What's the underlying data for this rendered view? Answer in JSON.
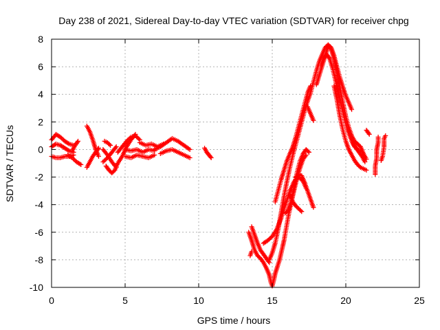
{
  "chart_data": {
    "type": "scatter",
    "title": "Day 238 of 2021, Sidereal Day-to-day VTEC variation (SDTVAR) for receiver chpg",
    "xlabel": "GPS time / hours",
    "ylabel": "SDTVAR / TECUs",
    "xlim": [
      0,
      25
    ],
    "ylim": [
      -10,
      8
    ],
    "xticks": [
      "0",
      "5",
      "10",
      "15",
      "20",
      "25"
    ],
    "yticks": [
      "-10",
      "-8",
      "-6",
      "-4",
      "-2",
      "0",
      "2",
      "4",
      "6",
      "8"
    ],
    "grid": true,
    "marker": "+",
    "color": "#ff0000",
    "series": [
      {
        "name": "SDTVAR",
        "segments": [
          [
            [
              0.0,
              0.7
            ],
            [
              0.3,
              1.1
            ],
            [
              0.6,
              0.9
            ],
            [
              0.9,
              0.6
            ],
            [
              1.2,
              0.4
            ],
            [
              1.5,
              0.3
            ]
          ],
          [
            [
              0.0,
              0.2
            ],
            [
              0.3,
              0.4
            ],
            [
              0.6,
              0.3
            ],
            [
              0.9,
              0.1
            ],
            [
              1.2,
              -0.1
            ],
            [
              1.5,
              -0.2
            ]
          ],
          [
            [
              0.0,
              -0.5
            ],
            [
              0.3,
              -0.6
            ],
            [
              0.6,
              -0.6
            ],
            [
              0.9,
              -0.5
            ],
            [
              1.2,
              -0.5
            ],
            [
              1.5,
              -0.4
            ]
          ],
          [
            [
              1.1,
              -0.4
            ],
            [
              1.4,
              -0.6
            ],
            [
              1.7,
              -0.9
            ],
            [
              2.0,
              -1.1
            ]
          ],
          [
            [
              1.4,
              -0.1
            ],
            [
              1.6,
              0.3
            ],
            [
              1.8,
              0.6
            ]
          ],
          [
            [
              2.4,
              1.7
            ],
            [
              2.6,
              1.3
            ],
            [
              2.8,
              0.7
            ],
            [
              3.0,
              0.0
            ],
            [
              3.2,
              -0.5
            ]
          ],
          [
            [
              2.4,
              -1.3
            ],
            [
              2.6,
              -0.9
            ],
            [
              2.8,
              -0.5
            ],
            [
              3.0,
              -0.2
            ],
            [
              3.2,
              0.1
            ]
          ],
          [
            [
              3.5,
              0.0
            ],
            [
              3.8,
              -0.4
            ],
            [
              4.1,
              -0.9
            ],
            [
              4.4,
              -1.3
            ]
          ],
          [
            [
              3.5,
              -0.9
            ],
            [
              3.8,
              -0.6
            ],
            [
              4.1,
              -0.2
            ],
            [
              4.4,
              0.2
            ]
          ],
          [
            [
              3.6,
              0.6
            ],
            [
              3.8,
              0.5
            ],
            [
              4.0,
              0.3
            ]
          ],
          [
            [
              3.7,
              -1.2
            ],
            [
              3.9,
              -1.5
            ],
            [
              4.1,
              -1.7
            ],
            [
              4.3,
              -1.5
            ],
            [
              4.5,
              -1.0
            ],
            [
              4.8,
              -0.5
            ],
            [
              5.1,
              0.2
            ],
            [
              5.4,
              0.7
            ],
            [
              5.7,
              1.1
            ]
          ],
          [
            [
              4.5,
              -0.2
            ],
            [
              4.8,
              0.2
            ],
            [
              5.1,
              0.6
            ],
            [
              5.4,
              0.9
            ],
            [
              5.7,
              1.0
            ],
            [
              6.0,
              0.7
            ]
          ],
          [
            [
              5.0,
              -0.5
            ],
            [
              5.4,
              -0.6
            ],
            [
              5.8,
              -0.4
            ],
            [
              6.2,
              -0.5
            ],
            [
              6.6,
              -0.6
            ],
            [
              7.0,
              -0.4
            ]
          ],
          [
            [
              5.0,
              0.0
            ],
            [
              5.4,
              -0.1
            ],
            [
              5.8,
              0.0
            ],
            [
              6.2,
              -0.2
            ],
            [
              6.6,
              0.0
            ],
            [
              7.0,
              -0.1
            ]
          ],
          [
            [
              6.0,
              0.5
            ],
            [
              6.4,
              0.3
            ],
            [
              6.8,
              0.4
            ],
            [
              7.2,
              0.2
            ],
            [
              7.6,
              0.4
            ]
          ],
          [
            [
              7.0,
              0.0
            ],
            [
              7.4,
              0.2
            ],
            [
              7.8,
              0.5
            ],
            [
              8.2,
              0.8
            ],
            [
              8.6,
              0.6
            ],
            [
              9.0,
              0.3
            ],
            [
              9.4,
              0.0
            ]
          ],
          [
            [
              7.4,
              -0.3
            ],
            [
              7.8,
              -0.1
            ],
            [
              8.2,
              0.0
            ],
            [
              8.6,
              -0.2
            ],
            [
              9.0,
              -0.4
            ],
            [
              9.4,
              -0.6
            ]
          ],
          [
            [
              10.4,
              0.1
            ],
            [
              10.55,
              -0.2
            ],
            [
              10.7,
              -0.4
            ],
            [
              10.85,
              -0.6
            ]
          ],
          [
            [
              13.5,
              -7.7
            ],
            [
              13.6,
              -7.4
            ]
          ],
          [
            [
              13.4,
              -6.0
            ],
            [
              13.6,
              -6.6
            ],
            [
              13.8,
              -7.3
            ],
            [
              14.0,
              -7.7
            ],
            [
              14.2,
              -7.9
            ],
            [
              14.4,
              -8.2
            ],
            [
              14.6,
              -8.6
            ],
            [
              14.8,
              -9.1
            ],
            [
              14.9,
              -9.6
            ],
            [
              15.0,
              -9.9
            ],
            [
              15.1,
              -9.5
            ],
            [
              15.2,
              -9.0
            ],
            [
              15.35,
              -8.5
            ],
            [
              15.5,
              -8.0
            ],
            [
              15.65,
              -7.3
            ],
            [
              15.8,
              -6.6
            ],
            [
              15.95,
              -5.7
            ],
            [
              16.1,
              -4.8
            ],
            [
              16.3,
              -3.8
            ],
            [
              16.5,
              -2.9
            ],
            [
              16.7,
              -2.0
            ],
            [
              16.9,
              -1.3
            ],
            [
              17.1,
              -0.7
            ],
            [
              17.3,
              -0.4
            ]
          ],
          [
            [
              13.6,
              -5.6
            ],
            [
              13.8,
              -6.2
            ],
            [
              14.0,
              -6.8
            ],
            [
              14.2,
              -7.3
            ],
            [
              14.4,
              -7.6
            ],
            [
              14.6,
              -7.9
            ],
            [
              14.8,
              -8.2
            ]
          ],
          [
            [
              14.4,
              -6.8
            ],
            [
              14.7,
              -6.6
            ],
            [
              15.0,
              -6.3
            ],
            [
              15.3,
              -5.8
            ],
            [
              15.6,
              -5.0
            ],
            [
              15.9,
              -4.0
            ],
            [
              16.2,
              -3.0
            ],
            [
              16.5,
              -2.3
            ],
            [
              16.8,
              -2.0
            ],
            [
              17.1,
              -2.3
            ],
            [
              17.3,
              -2.8
            ]
          ],
          [
            [
              14.8,
              -8.0
            ],
            [
              15.0,
              -7.5
            ],
            [
              15.2,
              -6.8
            ],
            [
              15.4,
              -5.8
            ],
            [
              15.6,
              -4.6
            ],
            [
              15.8,
              -3.4
            ],
            [
              16.0,
              -2.3
            ],
            [
              16.2,
              -1.3
            ],
            [
              16.4,
              -0.4
            ],
            [
              16.6,
              0.4
            ],
            [
              16.8,
              1.2
            ],
            [
              17.0,
              2.0
            ],
            [
              17.2,
              2.8
            ],
            [
              17.4,
              3.5
            ],
            [
              17.6,
              4.1
            ],
            [
              17.8,
              4.9
            ],
            [
              18.0,
              5.7
            ],
            [
              18.2,
              6.4
            ],
            [
              18.4,
              6.9
            ],
            [
              18.6,
              7.4
            ],
            [
              18.8,
              7.6
            ],
            [
              19.0,
              7.4
            ],
            [
              19.2,
              6.8
            ],
            [
              19.4,
              6.0
            ],
            [
              19.6,
              5.2
            ],
            [
              19.8,
              4.5
            ],
            [
              20.0,
              3.9
            ],
            [
              20.2,
              3.4
            ],
            [
              20.4,
              2.9
            ]
          ],
          [
            [
              15.2,
              -3.8
            ],
            [
              15.4,
              -3.0
            ],
            [
              15.6,
              -2.2
            ],
            [
              15.8,
              -1.5
            ],
            [
              16.0,
              -0.8
            ],
            [
              16.2,
              -0.3
            ],
            [
              16.4,
              0.2
            ],
            [
              16.6,
              0.9
            ],
            [
              16.8,
              1.7
            ],
            [
              17.0,
              2.5
            ],
            [
              17.2,
              3.3
            ],
            [
              17.4,
              4.1
            ],
            [
              17.6,
              4.6
            ]
          ],
          [
            [
              15.9,
              -4.6
            ],
            [
              16.1,
              -4.4
            ],
            [
              16.3,
              -3.7
            ],
            [
              16.5,
              -2.6
            ],
            [
              16.7,
              -1.6
            ],
            [
              16.9,
              -0.8
            ],
            [
              17.1,
              -0.3
            ],
            [
              17.3,
              0.0
            ],
            [
              17.5,
              -0.2
            ]
          ],
          [
            [
              16.2,
              -3.3
            ],
            [
              16.4,
              -3.8
            ],
            [
              16.6,
              -4.1
            ],
            [
              16.8,
              -4.3
            ],
            [
              17.0,
              -4.5
            ]
          ],
          [
            [
              16.6,
              -2.0
            ],
            [
              16.8,
              -1.8
            ],
            [
              17.0,
              -1.9
            ],
            [
              17.2,
              -2.4
            ],
            [
              17.4,
              -3.0
            ],
            [
              17.6,
              -3.6
            ],
            [
              17.8,
              -4.2
            ]
          ],
          [
            [
              17.4,
              3.1
            ],
            [
              17.6,
              2.6
            ],
            [
              17.8,
              2.1
            ]
          ],
          [
            [
              18.0,
              4.7
            ],
            [
              18.2,
              5.4
            ],
            [
              18.4,
              6.1
            ],
            [
              18.6,
              6.8
            ],
            [
              18.8,
              7.5
            ],
            [
              19.0,
              7.3
            ],
            [
              19.2,
              6.6
            ],
            [
              19.4,
              5.6
            ],
            [
              19.6,
              4.5
            ],
            [
              19.8,
              3.4
            ],
            [
              20.0,
              2.4
            ],
            [
              20.2,
              1.6
            ],
            [
              20.4,
              1.0
            ],
            [
              20.6,
              0.6
            ],
            [
              20.8,
              0.4
            ],
            [
              21.0,
              0.2
            ],
            [
              21.2,
              -0.3
            ],
            [
              21.4,
              -0.7
            ]
          ],
          [
            [
              18.3,
              6.1
            ],
            [
              18.5,
              6.6
            ],
            [
              18.7,
              6.9
            ],
            [
              18.9,
              6.6
            ],
            [
              19.1,
              5.9
            ],
            [
              19.3,
              5.0
            ],
            [
              19.5,
              4.1
            ],
            [
              19.7,
              3.2
            ],
            [
              19.9,
              2.3
            ],
            [
              20.1,
              1.5
            ],
            [
              20.3,
              0.9
            ],
            [
              20.5,
              0.4
            ],
            [
              20.7,
              0.1
            ],
            [
              20.9,
              -0.2
            ],
            [
              21.1,
              -0.5
            ],
            [
              21.3,
              -0.9
            ]
          ],
          [
            [
              19.2,
              4.6
            ],
            [
              19.4,
              3.6
            ],
            [
              19.6,
              2.4
            ],
            [
              19.8,
              1.4
            ],
            [
              20.0,
              0.6
            ],
            [
              20.2,
              0.0
            ],
            [
              20.4,
              -0.4
            ],
            [
              20.6,
              -0.8
            ],
            [
              20.8,
              -1.1
            ],
            [
              21.0,
              -1.3
            ],
            [
              21.2,
              -1.4
            ],
            [
              21.4,
              -1.5
            ]
          ],
          [
            [
              20.4,
              0.6
            ],
            [
              20.6,
              0.2
            ],
            [
              20.8,
              0.0
            ],
            [
              21.0,
              -0.2
            ]
          ],
          [
            [
              21.4,
              1.4
            ],
            [
              21.6,
              1.1
            ]
          ],
          [
            [
              22.0,
              -1.8
            ],
            [
              22.0,
              -1.2
            ],
            [
              22.1,
              -0.6
            ],
            [
              22.1,
              0.0
            ],
            [
              22.2,
              0.5
            ],
            [
              22.2,
              0.9
            ]
          ],
          [
            [
              22.4,
              -0.8
            ],
            [
              22.5,
              -0.5
            ],
            [
              22.6,
              0.2
            ],
            [
              22.6,
              0.8
            ],
            [
              22.7,
              1.0
            ]
          ]
        ]
      }
    ]
  }
}
